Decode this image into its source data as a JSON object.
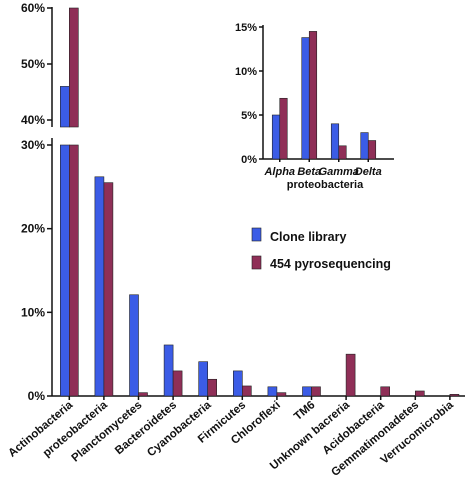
{
  "colors": {
    "clone_library": "#3b5ce6",
    "pyrosequencing": "#8f2f57"
  },
  "chart_data": [
    {
      "type": "bar",
      "categories": [
        "Actinobacteria",
        "proteobacteria",
        "Planctomycetes",
        "Bacteroidetes",
        "Cyanobacteria",
        "Firmicutes",
        "Chloroflexi",
        "TM6",
        "Unknown bacreria",
        "Acidobacteria",
        "Gemmatimonadetes",
        "Verrucomicrobia"
      ],
      "series": [
        {
          "name": "Clone library",
          "values": [
            46,
            26.2,
            12.1,
            6.1,
            4.1,
            3.0,
            1.1,
            1.1,
            0,
            0,
            0,
            0
          ]
        },
        {
          "name": "454 pyrosequencing",
          "values": [
            60,
            25.5,
            0.4,
            3.0,
            2.0,
            1.2,
            0.4,
            1.1,
            5.0,
            1.1,
            0.6,
            0.2
          ]
        }
      ],
      "y_axis": "broken",
      "y_lower_range": [
        0,
        30
      ],
      "y_upper_range": [
        40,
        60
      ],
      "y_lower_ticks": [
        "0%",
        "10%",
        "20%",
        "30%"
      ],
      "y_upper_ticks": [
        "40%",
        "50%",
        "60%"
      ],
      "legend": {
        "position": "center-right",
        "entries": [
          "Clone library",
          "454 pyrosequencing"
        ]
      },
      "grid": false
    },
    {
      "type": "bar",
      "inset": true,
      "categories": [
        "Alpha",
        "Beta",
        "Gamma",
        "Delta"
      ],
      "xlabel": "proteobacteria",
      "series": [
        {
          "name": "Clone library",
          "values": [
            5.0,
            13.8,
            4.0,
            3.0
          ]
        },
        {
          "name": "454 pyrosequencing",
          "values": [
            6.9,
            14.5,
            1.5,
            2.1
          ]
        }
      ],
      "ylim": [
        0,
        15
      ],
      "y_ticks": [
        "0%",
        "5%",
        "10%",
        "15%"
      ],
      "grid": false
    }
  ]
}
